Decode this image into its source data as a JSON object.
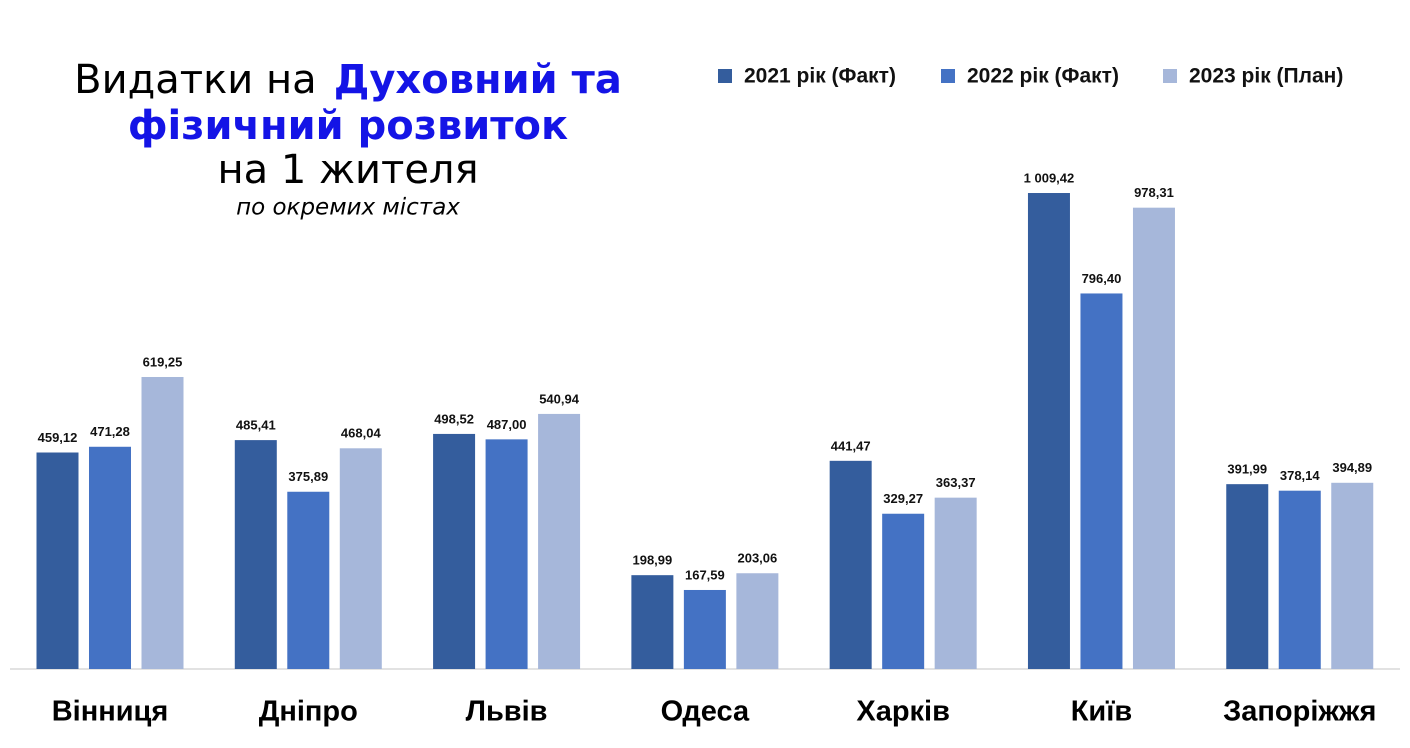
{
  "chart_data": {
    "type": "bar",
    "title": [
      "Видатки на",
      "Духовний та",
      "фізичний розвиток",
      "на 1 жителя"
    ],
    "subtitle": "по окремих містах",
    "categories": [
      "Вінниця",
      "Дніпро",
      "Львів",
      "Одеса",
      "Харків",
      "Київ",
      "Запоріжжя"
    ],
    "series": [
      {
        "name": "2021 рік (Факт)",
        "color": "#345d9d",
        "values": [
          459.12,
          485.41,
          498.52,
          198.99,
          441.47,
          1009.42,
          391.99
        ],
        "value_labels": [
          "459,12",
          "485,41",
          "498,52",
          "198,99",
          "441,47",
          "1 009,42",
          "391,99"
        ]
      },
      {
        "name": "2022 рік (Факт)",
        "color": "#4472c4",
        "values": [
          471.28,
          375.89,
          487.0,
          167.59,
          329.27,
          796.4,
          378.14
        ],
        "value_labels": [
          "471,28",
          "375,89",
          "487,00",
          "167,59",
          "329,27",
          "796,40",
          "378,14"
        ]
      },
      {
        "name": "2023 рік (План)",
        "color": "#a6b7da",
        "values": [
          619.25,
          468.04,
          540.94,
          203.06,
          363.37,
          978.31,
          394.89
        ],
        "value_labels": [
          "619,25",
          "468,04",
          "540,94",
          "203,06",
          "363,37",
          "978,31",
          "394,89"
        ]
      }
    ],
    "ylim": [
      0,
      1100
    ],
    "grid": false,
    "legend": "top-right"
  }
}
